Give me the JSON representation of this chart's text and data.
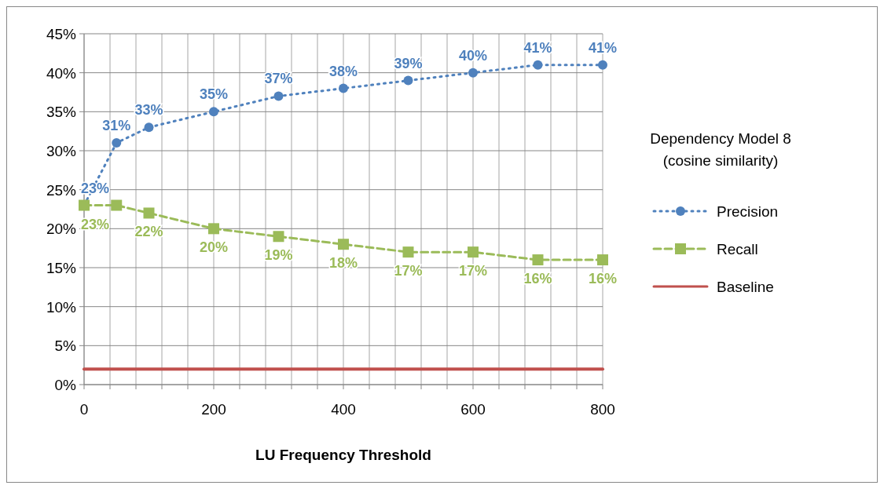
{
  "chart_data": {
    "type": "line",
    "xlabel": "LU Frequency Threshold",
    "legend_title": "Dependency Model 8 (cosine similarity)",
    "legend": "right",
    "grid": true,
    "xlim": [
      0,
      800
    ],
    "xticks": [
      0,
      {
        "value": 40,
        "label": null
      },
      {
        "value": 80,
        "label": null
      },
      {
        "value": 120,
        "label": null
      },
      {
        "value": 160,
        "label": null
      },
      200,
      {
        "value": 240,
        "label": null
      },
      {
        "value": 280,
        "label": null
      },
      {
        "value": 320,
        "label": null
      },
      {
        "value": 360,
        "label": null
      },
      400,
      {
        "value": 440,
        "label": null
      },
      {
        "value": 480,
        "label": null
      },
      {
        "value": 520,
        "label": null
      },
      {
        "value": 560,
        "label": null
      },
      600,
      {
        "value": 640,
        "label": null
      },
      {
        "value": 680,
        "label": null
      },
      {
        "value": 720,
        "label": null
      },
      {
        "value": 760,
        "label": null
      },
      800
    ],
    "ylim": [
      0,
      45
    ],
    "yticks": [
      {
        "value": 0,
        "label": "0%"
      },
      {
        "value": 5,
        "label": "5%"
      },
      {
        "value": 10,
        "label": "10%"
      },
      {
        "value": 15,
        "label": "15%"
      },
      {
        "value": 20,
        "label": "20%"
      },
      {
        "value": 25,
        "label": "25%"
      },
      {
        "value": 30,
        "label": "30%"
      },
      {
        "value": 35,
        "label": "35%"
      },
      {
        "value": 40,
        "label": "40%"
      },
      {
        "value": 45,
        "label": "45%"
      }
    ],
    "x": [
      0,
      50,
      100,
      200,
      300,
      400,
      500,
      600,
      700,
      800
    ],
    "series": [
      {
        "name": "Precision",
        "color": "#4f81bd",
        "marker": "circle",
        "line_style": "dotted",
        "values": [
          23,
          31,
          33,
          35,
          37,
          38,
          39,
          40,
          41,
          41
        ],
        "value_labels": [
          "23%",
          "31%",
          "33%",
          "35%",
          "37%",
          "38%",
          "39%",
          "40%",
          "41%",
          "41%"
        ]
      },
      {
        "name": "Recall",
        "color": "#9bbb59",
        "marker": "square",
        "line_style": "dashed",
        "values": [
          23,
          23,
          22,
          20,
          19,
          18,
          17,
          17,
          16,
          16
        ],
        "value_labels": [
          "23%",
          null,
          "22%",
          "20%",
          "19%",
          "18%",
          "17%",
          "17%",
          "16%",
          "16%"
        ]
      },
      {
        "name": "Baseline",
        "color": "#c0504d",
        "marker": "none",
        "line_style": "solid",
        "values": [
          2,
          2,
          2,
          2,
          2,
          2,
          2,
          2,
          2,
          2
        ]
      }
    ]
  }
}
